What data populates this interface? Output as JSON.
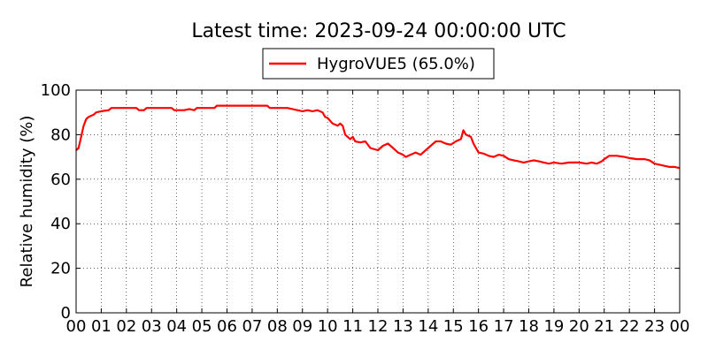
{
  "chart_data": {
    "type": "line",
    "title": "Latest time: 2023-09-24 00:00:00 UTC",
    "xlabel": "",
    "ylabel": "Relative humidity (%)",
    "xlim": [
      0,
      24
    ],
    "ylim": [
      0,
      100
    ],
    "x_ticks": [
      "00",
      "01",
      "02",
      "03",
      "04",
      "05",
      "06",
      "07",
      "08",
      "09",
      "10",
      "11",
      "12",
      "13",
      "14",
      "15",
      "16",
      "17",
      "18",
      "19",
      "20",
      "21",
      "22",
      "23",
      "00"
    ],
    "y_ticks": [
      0,
      20,
      40,
      60,
      80,
      100
    ],
    "grid": true,
    "legend_position": "top-center",
    "series": [
      {
        "name": "HygroVUE5 (65.0%)",
        "color": "#ff0000",
        "x": [
          0.0,
          0.1,
          0.2,
          0.3,
          0.4,
          0.5,
          0.7,
          0.8,
          1.0,
          1.3,
          1.4,
          2.4,
          2.5,
          2.7,
          2.8,
          3.8,
          3.9,
          4.3,
          4.5,
          4.7,
          4.8,
          5.5,
          5.6,
          7.6,
          7.7,
          8.4,
          8.6,
          8.8,
          9.0,
          9.2,
          9.4,
          9.6,
          9.8,
          9.9,
          10.0,
          10.2,
          10.4,
          10.5,
          10.6,
          10.7,
          10.8,
          10.9,
          11.0,
          11.1,
          11.3,
          11.5,
          11.7,
          12.0,
          12.2,
          12.4,
          12.6,
          12.8,
          13.0,
          13.1,
          13.3,
          13.5,
          13.7,
          13.9,
          14.1,
          14.3,
          14.5,
          14.7,
          14.9,
          15.1,
          15.3,
          15.4,
          15.5,
          15.7,
          15.8,
          15.9,
          16.0,
          16.2,
          16.4,
          16.6,
          16.8,
          17.0,
          17.2,
          17.4,
          17.6,
          17.8,
          18.0,
          18.2,
          18.4,
          18.6,
          18.8,
          19.0,
          19.3,
          19.6,
          20.0,
          20.3,
          20.5,
          20.7,
          20.9,
          21.0,
          21.2,
          21.5,
          21.8,
          22.0,
          22.3,
          22.6,
          22.8,
          23.0,
          23.2,
          23.4,
          23.6,
          23.8,
          24.0
        ],
        "values": [
          73,
          74,
          79,
          84,
          87,
          88,
          89,
          90,
          90.5,
          91,
          92,
          92,
          91,
          91,
          92,
          92,
          91,
          91,
          91.5,
          91,
          92,
          92,
          93,
          93,
          92,
          92,
          91.5,
          91,
          90.5,
          91,
          90.5,
          91,
          90,
          88,
          87.5,
          85,
          84,
          85,
          84,
          80,
          79,
          78,
          79,
          77,
          76.5,
          77,
          74,
          73,
          75,
          76,
          74,
          72,
          71,
          70,
          71,
          72,
          71,
          73,
          75,
          77,
          77,
          76,
          75.5,
          77,
          78,
          82,
          80,
          79,
          76,
          74,
          72,
          71.5,
          70.5,
          70,
          71,
          70.5,
          69,
          68.5,
          68,
          67.5,
          68,
          68.5,
          68,
          67.5,
          67,
          67.5,
          67,
          67.5,
          67.5,
          67,
          67.5,
          67,
          68,
          69,
          70.5,
          70.5,
          70,
          69.5,
          69,
          69,
          68.5,
          67,
          66.5,
          66,
          65.5,
          65.5,
          65
        ]
      }
    ]
  }
}
